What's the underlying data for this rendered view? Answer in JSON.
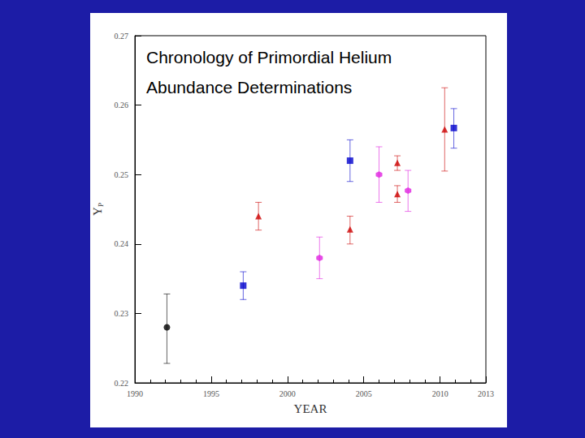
{
  "chart_data": {
    "type": "scatter",
    "title": "Chronology of Primordial Helium\nAbundance Determinations",
    "xlabel": "YEAR",
    "ylabel": "YP",
    "xlim": [
      1990,
      2013
    ],
    "xticks": [
      1990,
      1995,
      2000,
      2005,
      2010
    ],
    "ylim": [
      0.22,
      0.27
    ],
    "yticks": [
      0.22,
      0.23,
      0.24,
      0.25,
      0.26,
      0.27
    ],
    "grid": false,
    "series": [
      {
        "color": "#000000",
        "marker": "circle",
        "x": [
          1992.1
        ],
        "values": [
          0.228
        ],
        "lower": [
          0.2228
        ],
        "upper": [
          0.2328
        ]
      },
      {
        "color": "#0000cc",
        "marker": "square",
        "x": [
          1997.1,
          2004.1,
          2010.9
        ],
        "values": [
          0.234,
          0.252,
          0.2567
        ],
        "lower": [
          0.232,
          0.249,
          0.2538
        ],
        "upper": [
          0.236,
          0.255,
          0.2595
        ]
      },
      {
        "color": "#cc0000",
        "marker": "triangle",
        "x": [
          1998.1,
          2004.1,
          2007.2,
          2007.2,
          2010.3
        ],
        "values": [
          0.244,
          0.2421,
          0.2517,
          0.2472,
          0.2565
        ],
        "lower": [
          0.242,
          0.24,
          0.2506,
          0.246,
          0.2505
        ],
        "upper": [
          0.246,
          0.244,
          0.2527,
          0.2484,
          0.2625
        ]
      },
      {
        "color": "#e020e0",
        "marker": "hexagon",
        "x": [
          2002.1,
          2006.0,
          2007.9
        ],
        "values": [
          0.238,
          0.25,
          0.2477
        ],
        "lower": [
          0.235,
          0.246,
          0.2447
        ],
        "upper": [
          0.241,
          0.254,
          0.2506
        ]
      }
    ]
  }
}
